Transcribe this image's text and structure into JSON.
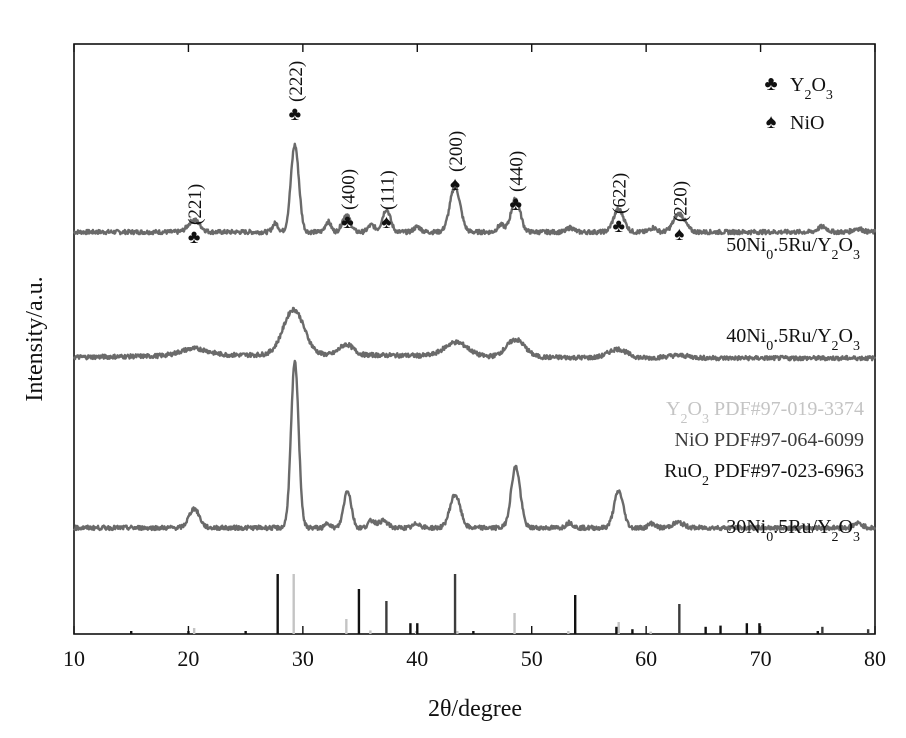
{
  "chart_data": {
    "type": "line",
    "xlabel": "2θ/degree",
    "ylabel": "Intensity/a.u.",
    "xlim": [
      10,
      80
    ],
    "xticks": [
      "10",
      "20",
      "30",
      "40",
      "50",
      "60",
      "70",
      "80"
    ],
    "grid": false,
    "legend": {
      "placement": "top-right",
      "entries": [
        {
          "symbol": "♣",
          "label": "Y2O3"
        },
        {
          "symbol": "♠",
          "label": "NiO"
        }
      ]
    },
    "series": [
      {
        "name": "50Ni0.5Ru/Y2O3",
        "baseline": 4.0,
        "background": 0.0,
        "peaks": [
          [
            20.5,
            0.14,
            0.5
          ],
          [
            27.6,
            0.1,
            0.25
          ],
          [
            29.3,
            1.0,
            0.35
          ],
          [
            32.2,
            0.12,
            0.25
          ],
          [
            33.8,
            0.2,
            0.35
          ],
          [
            36.0,
            0.08,
            0.3
          ],
          [
            37.3,
            0.26,
            0.35
          ],
          [
            40.0,
            0.06,
            0.3
          ],
          [
            43.3,
            0.52,
            0.45
          ],
          [
            47.3,
            0.08,
            0.3
          ],
          [
            48.6,
            0.38,
            0.4
          ],
          [
            53.4,
            0.05,
            0.3
          ],
          [
            57.6,
            0.26,
            0.45
          ],
          [
            60.6,
            0.05,
            0.3
          ],
          [
            62.9,
            0.21,
            0.5
          ],
          [
            75.4,
            0.06,
            0.4
          ],
          [
            78.5,
            0.04,
            0.4
          ]
        ]
      },
      {
        "name": "40Ni0.5Ru/Y2O3",
        "baseline": 2.55,
        "background": 0.04,
        "peaks": [
          [
            20.5,
            0.08,
            1.2
          ],
          [
            29.2,
            0.52,
            0.9
          ],
          [
            33.8,
            0.12,
            0.6
          ],
          [
            43.4,
            0.16,
            1.0
          ],
          [
            48.6,
            0.2,
            0.8
          ],
          [
            57.5,
            0.1,
            0.8
          ],
          [
            62.8,
            0.03,
            1.0
          ]
        ]
      },
      {
        "name": "30Ni0.5Ru/Y2O3",
        "baseline": 0.6,
        "background": 0.0,
        "peaks": [
          [
            20.5,
            0.22,
            0.45
          ],
          [
            29.3,
            1.9,
            0.33
          ],
          [
            32.2,
            0.06,
            0.2
          ],
          [
            33.9,
            0.43,
            0.33
          ],
          [
            36.0,
            0.08,
            0.3
          ],
          [
            37.0,
            0.08,
            0.4
          ],
          [
            40.0,
            0.05,
            0.3
          ],
          [
            43.3,
            0.38,
            0.45
          ],
          [
            48.6,
            0.7,
            0.4
          ],
          [
            53.3,
            0.06,
            0.3
          ],
          [
            57.6,
            0.42,
            0.4
          ],
          [
            60.5,
            0.05,
            0.3
          ],
          [
            62.8,
            0.06,
            0.5
          ],
          [
            78.5,
            0.05,
            0.4
          ]
        ]
      }
    ],
    "peak_annotations": [
      {
        "x": 20.5,
        "label": "(221)",
        "symbol": "♣"
      },
      {
        "x": 29.3,
        "label": "(222)",
        "symbol": "♣"
      },
      {
        "x": 33.9,
        "label": "(400)",
        "symbol": "♣"
      },
      {
        "x": 37.3,
        "label": "(111)",
        "symbol": "♠"
      },
      {
        "x": 43.3,
        "label": "(200)",
        "symbol": "♠"
      },
      {
        "x": 48.6,
        "label": "(440)",
        "symbol": "♣"
      },
      {
        "x": 57.6,
        "label": "(622)",
        "symbol": "♣"
      },
      {
        "x": 62.9,
        "label": "(220)",
        "symbol": "♠"
      }
    ],
    "references": [
      {
        "name": "Y2O3 PDF#97-019-3374",
        "color": "#c4c4c4",
        "lines": [
          [
            20.5,
            0.1
          ],
          [
            29.2,
            1.0
          ],
          [
            33.8,
            0.25
          ],
          [
            35.9,
            0.06
          ],
          [
            39.9,
            0.05
          ],
          [
            43.5,
            0.05
          ],
          [
            48.5,
            0.35
          ],
          [
            53.2,
            0.05
          ],
          [
            57.6,
            0.2
          ],
          [
            60.4,
            0.04
          ]
        ]
      },
      {
        "name": "NiO PDF#97-064-6099",
        "color": "#3c3c3c",
        "lines": [
          [
            37.3,
            0.55
          ],
          [
            43.3,
            1.0
          ],
          [
            62.9,
            0.5
          ],
          [
            75.4,
            0.12
          ],
          [
            79.4,
            0.08
          ]
        ]
      },
      {
        "name": "RuO2 PDF#97-023-6963",
        "color": "#111111",
        "lines": [
          [
            15.0,
            0.05
          ],
          [
            20.0,
            0.05
          ],
          [
            25.0,
            0.05
          ],
          [
            27.8,
            1.0
          ],
          [
            34.9,
            0.75
          ],
          [
            39.4,
            0.18
          ],
          [
            40.0,
            0.18
          ],
          [
            44.9,
            0.05
          ],
          [
            53.8,
            0.65
          ],
          [
            57.4,
            0.12
          ],
          [
            58.8,
            0.08
          ],
          [
            65.2,
            0.12
          ],
          [
            66.5,
            0.14
          ],
          [
            68.8,
            0.18
          ],
          [
            69.9,
            0.18
          ],
          [
            75.0,
            0.05
          ]
        ]
      }
    ]
  }
}
